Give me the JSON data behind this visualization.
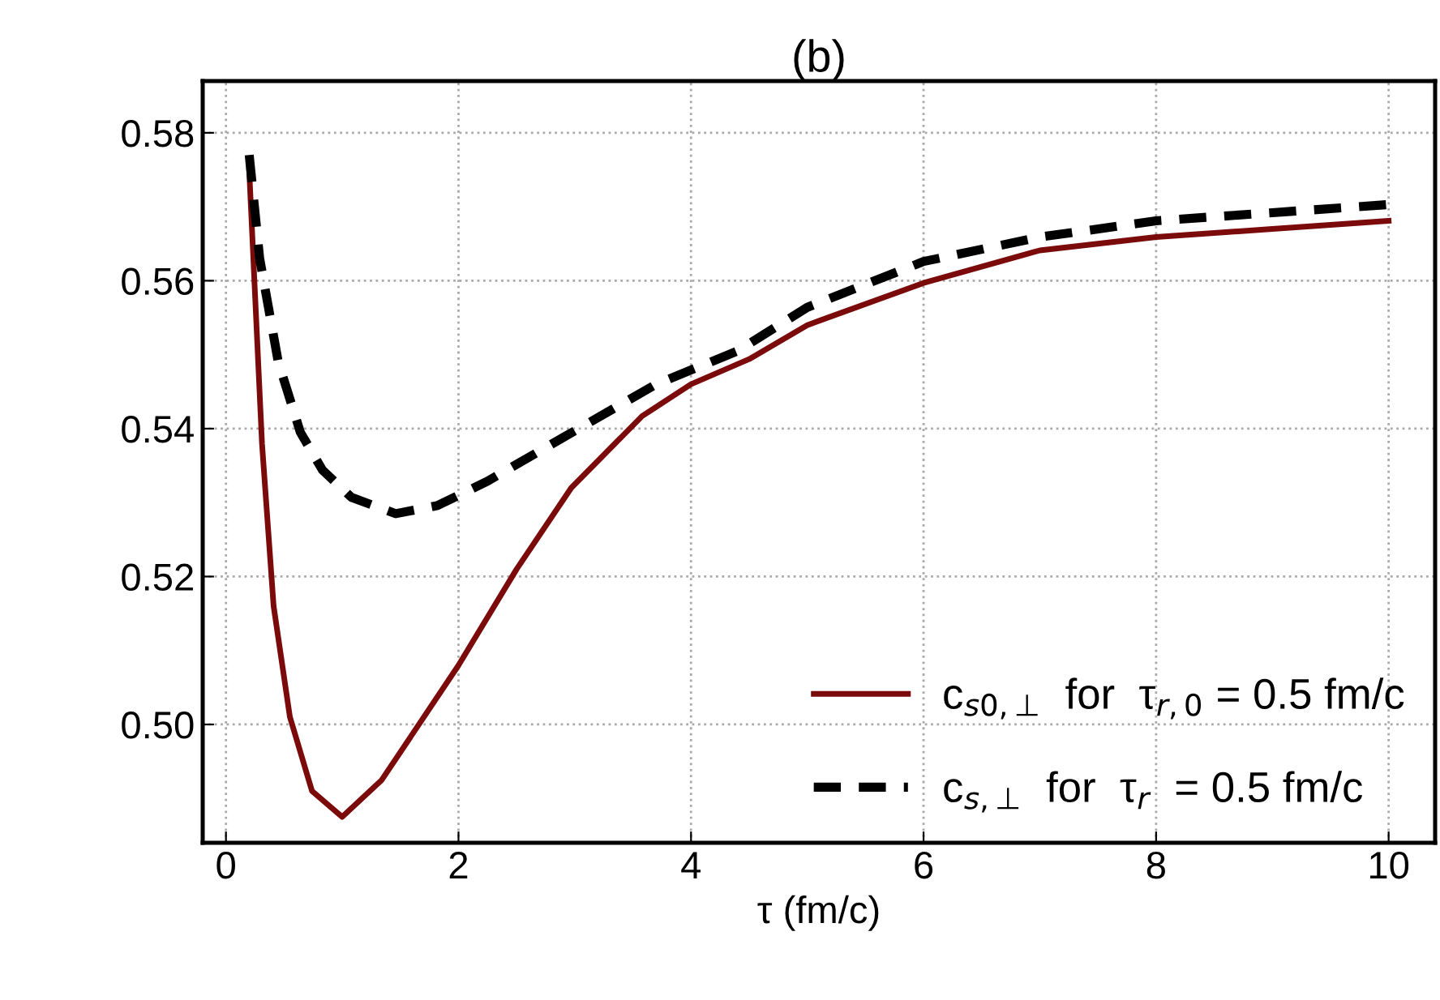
{
  "chart_data": {
    "type": "line",
    "title": "(b)",
    "xlabel": "τ (fm/c)",
    "xlim": [
      -0.2,
      10.4
    ],
    "ylim": [
      0.484,
      0.587
    ],
    "xticks": [
      0,
      2,
      4,
      6,
      8,
      10
    ],
    "yticks": [
      {
        "value": 0.5,
        "label": "0.50"
      },
      {
        "value": 0.52,
        "label": "0.52"
      },
      {
        "value": 0.54,
        "label": "0.54"
      },
      {
        "value": 0.56,
        "label": "0.56"
      },
      {
        "value": 0.58,
        "label": "0.58"
      }
    ],
    "grid": true,
    "legend": "bottom right",
    "series": [
      {
        "name": "c$_{s0,⊥}$  for  τ$_{r,0}$ = 0.5 fm/c",
        "color": "#7b0a0a",
        "line_style": "solid",
        "x": [
          0.2,
          0.31,
          0.41,
          0.55,
          0.74,
          1.0,
          1.34,
          2.0,
          2.5,
          2.97,
          3.58,
          4.0,
          4.5,
          5,
          6,
          7,
          8,
          9,
          10
        ],
        "values": [
          0.575,
          0.538,
          0.516,
          0.501,
          0.491,
          0.4875,
          0.4925,
          0.508,
          0.521,
          0.532,
          0.5417,
          0.546,
          0.5494,
          0.554,
          0.5597,
          0.5641,
          0.5659,
          0.567,
          0.5681
        ]
      },
      {
        "name": "c$_{s,⊥}$  for  τ$_{r}$  = 0.5 fm/c",
        "color": "#000000",
        "line_style": "dashed",
        "x": [
          0.2,
          0.29,
          0.45,
          0.64,
          0.83,
          1.08,
          1.46,
          1.82,
          2.25,
          2.9,
          3.7,
          4.4,
          5,
          6,
          7,
          8,
          9,
          10
        ],
        "values": [
          0.577,
          0.563,
          0.549,
          0.5395,
          0.5344,
          0.5307,
          0.5285,
          0.5296,
          0.5329,
          0.5388,
          0.546,
          0.5505,
          0.5564,
          0.5626,
          0.5659,
          0.5681,
          0.5692,
          0.5703
        ]
      }
    ]
  }
}
